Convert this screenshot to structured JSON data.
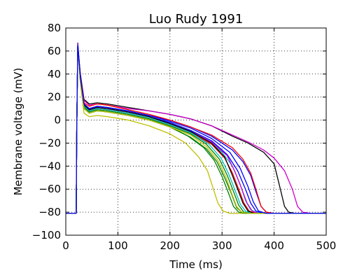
{
  "chart_data": {
    "type": "line",
    "title": "Luo Rudy 1991",
    "xlabel": "Time (ms)",
    "ylabel": "Membrane voltage (mV)",
    "xlim": [
      0,
      500
    ],
    "ylim": [
      -100,
      80
    ],
    "xticks": [
      0,
      100,
      200,
      300,
      400,
      500
    ],
    "yticks": [
      -100,
      -80,
      -60,
      -40,
      -20,
      0,
      20,
      40,
      60,
      80
    ],
    "grid": true,
    "series": [
      {
        "color": "#000000",
        "x": [
          0,
          19,
          20,
          21,
          23,
          28,
          35,
          45,
          60,
          80,
          120,
          160,
          200,
          240,
          280,
          320,
          350,
          380,
          400,
          412,
          420,
          428,
          440,
          460,
          500
        ],
        "y": [
          -81,
          -81,
          -81,
          -10,
          64,
          40,
          18,
          14,
          15,
          14,
          11,
          8,
          5,
          1,
          -5,
          -14,
          -20,
          -28,
          -38,
          -60,
          -75,
          -80,
          -81,
          -81,
          -81
        ]
      },
      {
        "color": "#cc00cc",
        "x": [
          0,
          19,
          20,
          21,
          23,
          28,
          35,
          45,
          60,
          80,
          120,
          160,
          200,
          240,
          280,
          320,
          350,
          380,
          400,
          420,
          435,
          445,
          455,
          470,
          500
        ],
        "y": [
          -81,
          -81,
          -81,
          -10,
          63,
          38,
          17,
          13,
          14,
          13,
          10,
          8,
          5,
          1,
          -5,
          -13,
          -19,
          -26,
          -33,
          -44,
          -60,
          -75,
          -80,
          -81,
          -81
        ]
      },
      {
        "color": "#0000ff",
        "x": [
          0,
          19,
          20,
          21,
          23,
          28,
          35,
          45,
          60,
          80,
          120,
          160,
          200,
          240,
          280,
          320,
          340,
          355,
          365,
          375,
          385,
          400,
          500
        ],
        "y": [
          -81,
          -81,
          -81,
          -10,
          67,
          38,
          14,
          10,
          12,
          11,
          8,
          4,
          0,
          -6,
          -14,
          -26,
          -36,
          -48,
          -62,
          -75,
          -80,
          -81,
          -81
        ]
      },
      {
        "color": "#ff0000",
        "x": [
          0,
          19,
          20,
          21,
          23,
          28,
          35,
          45,
          60,
          80,
          120,
          160,
          200,
          240,
          280,
          320,
          340,
          355,
          365,
          375,
          385,
          400,
          500
        ],
        "y": [
          -81,
          -81,
          -81,
          -10,
          66,
          38,
          15,
          12,
          14,
          13,
          9,
          5,
          0,
          -6,
          -13,
          -24,
          -34,
          -46,
          -60,
          -75,
          -80,
          -81,
          -81
        ]
      },
      {
        "color": "#00bfbf",
        "x": [
          0,
          19,
          20,
          21,
          23,
          28,
          35,
          45,
          60,
          80,
          120,
          160,
          200,
          240,
          280,
          300,
          320,
          335,
          345,
          355,
          365,
          380,
          500
        ],
        "y": [
          -81,
          -81,
          -81,
          -10,
          65,
          36,
          12,
          8,
          10,
          9,
          6,
          2,
          -3,
          -10,
          -20,
          -28,
          -40,
          -56,
          -70,
          -78,
          -80,
          -81,
          -81
        ]
      },
      {
        "color": "#008000",
        "x": [
          0,
          19,
          20,
          21,
          23,
          28,
          35,
          45,
          60,
          80,
          120,
          160,
          200,
          240,
          270,
          290,
          305,
          318,
          328,
          338,
          350,
          500
        ],
        "y": [
          -81,
          -81,
          -81,
          -10,
          64,
          34,
          10,
          6,
          8,
          7,
          4,
          0,
          -6,
          -15,
          -25,
          -36,
          -50,
          -64,
          -76,
          -80,
          -81,
          -81
        ]
      },
      {
        "color": "#bfbf00",
        "x": [
          0,
          19,
          20,
          21,
          23,
          28,
          35,
          45,
          60,
          80,
          120,
          160,
          200,
          230,
          255,
          272,
          282,
          292,
          302,
          315,
          500
        ],
        "y": [
          -81,
          -81,
          -81,
          -10,
          62,
          32,
          6,
          3,
          4,
          3,
          0,
          -5,
          -12,
          -20,
          -32,
          -44,
          -58,
          -72,
          -79,
          -81,
          -81
        ]
      },
      {
        "color": "#0000ff",
        "x": [
          0,
          19,
          20,
          21,
          23,
          28,
          35,
          45,
          60,
          80,
          120,
          160,
          200,
          240,
          280,
          310,
          330,
          345,
          355,
          365,
          380,
          500
        ],
        "y": [
          -81,
          -81,
          -81,
          -10,
          65,
          37,
          13,
          9,
          11,
          10,
          7,
          3,
          -2,
          -9,
          -18,
          -30,
          -44,
          -60,
          -72,
          -79,
          -81,
          -81
        ]
      },
      {
        "color": "#ff0000",
        "x": [
          0,
          19,
          20,
          21,
          23,
          28,
          35,
          45,
          60,
          80,
          120,
          160,
          200,
          240,
          280,
          305,
          320,
          332,
          342,
          352,
          365,
          500
        ],
        "y": [
          -81,
          -81,
          -81,
          -10,
          64,
          36,
          12,
          8,
          10,
          9,
          6,
          2,
          -4,
          -11,
          -21,
          -33,
          -46,
          -60,
          -72,
          -79,
          -81,
          -81
        ]
      },
      {
        "color": "#008000",
        "x": [
          0,
          19,
          20,
          21,
          23,
          28,
          35,
          45,
          60,
          80,
          120,
          160,
          200,
          240,
          270,
          295,
          310,
          322,
          332,
          342,
          355,
          500
        ],
        "y": [
          -81,
          -81,
          -81,
          -10,
          63,
          35,
          11,
          7,
          9,
          8,
          5,
          1,
          -5,
          -12,
          -21,
          -34,
          -48,
          -62,
          -74,
          -80,
          -81,
          -81
        ]
      },
      {
        "color": "#cc00cc",
        "x": [
          0,
          19,
          20,
          21,
          23,
          28,
          35,
          45,
          60,
          80,
          120,
          160,
          200,
          240,
          280,
          310,
          325,
          338,
          348,
          358,
          370,
          500
        ],
        "y": [
          -81,
          -81,
          -81,
          -10,
          64,
          36,
          13,
          9,
          11,
          10,
          7,
          3,
          -3,
          -10,
          -19,
          -31,
          -45,
          -60,
          -72,
          -79,
          -81,
          -81
        ]
      },
      {
        "color": "#00bfbf",
        "x": [
          0,
          19,
          20,
          21,
          23,
          28,
          35,
          45,
          60,
          80,
          120,
          160,
          200,
          240,
          275,
          298,
          313,
          325,
          335,
          345,
          358,
          500
        ],
        "y": [
          -81,
          -81,
          -81,
          -10,
          64,
          35,
          12,
          8,
          10,
          9,
          6,
          2,
          -4,
          -11,
          -21,
          -33,
          -47,
          -61,
          -73,
          -79,
          -81,
          -81
        ]
      },
      {
        "color": "#000000",
        "x": [
          0,
          19,
          20,
          21,
          23,
          28,
          35,
          45,
          60,
          80,
          120,
          160,
          200,
          240,
          280,
          305,
          318,
          330,
          340,
          350,
          362,
          500
        ],
        "y": [
          -81,
          -81,
          -81,
          -10,
          64,
          36,
          13,
          9,
          11,
          10,
          7,
          3,
          -3,
          -10,
          -20,
          -32,
          -46,
          -60,
          -72,
          -79,
          -81,
          -81
        ]
      },
      {
        "color": "#008000",
        "x": [
          0,
          19,
          20,
          21,
          23,
          28,
          35,
          45,
          60,
          80,
          120,
          160,
          200,
          235,
          265,
          285,
          300,
          312,
          322,
          332,
          345,
          500
        ],
        "y": [
          -81,
          -81,
          -81,
          -10,
          63,
          34,
          10,
          6,
          8,
          7,
          4,
          0,
          -6,
          -14,
          -24,
          -35,
          -49,
          -63,
          -75,
          -80,
          -81,
          -81
        ]
      },
      {
        "color": "#bfbf00",
        "x": [
          0,
          19,
          20,
          21,
          23,
          28,
          35,
          45,
          60,
          80,
          120,
          160,
          200,
          240,
          270,
          292,
          307,
          318,
          328,
          338,
          350,
          500
        ],
        "y": [
          -81,
          -81,
          -81,
          -10,
          63,
          34,
          10,
          6,
          8,
          7,
          4,
          0,
          -6,
          -13,
          -23,
          -35,
          -49,
          -63,
          -75,
          -80,
          -81,
          -81
        ]
      },
      {
        "color": "#0000ff",
        "x": [
          0,
          19,
          20,
          21,
          23,
          28,
          35,
          45,
          60,
          80,
          120,
          160,
          200,
          240,
          280,
          315,
          335,
          350,
          360,
          370,
          385,
          500
        ],
        "y": [
          -81,
          -81,
          -81,
          -10,
          65,
          37,
          14,
          10,
          12,
          11,
          8,
          4,
          -1,
          -7,
          -16,
          -28,
          -42,
          -58,
          -71,
          -79,
          -81,
          -81
        ]
      }
    ]
  }
}
